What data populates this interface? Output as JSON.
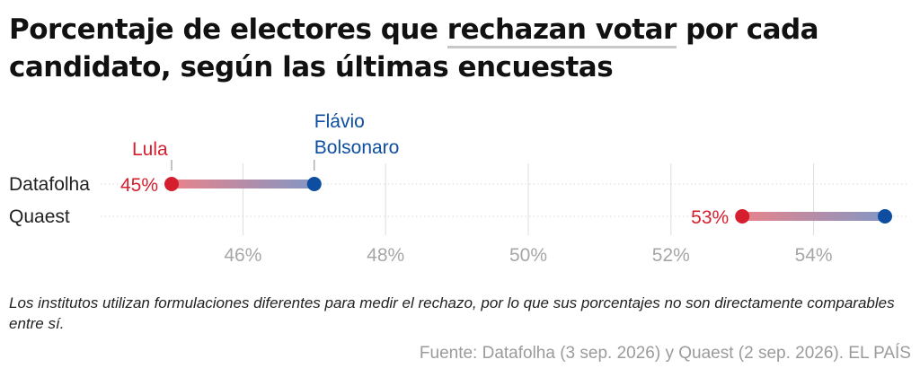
{
  "title": {
    "before": "Porcentaje de electores que ",
    "highlight": "rechazan votar",
    "after": " por cada candidato, según las últimas encuestas"
  },
  "colors": {
    "lula": "#d61f2e",
    "flavio": "#0d4ea0",
    "grid": "#dddddd",
    "tick": "#a6a6a6"
  },
  "chart_data": {
    "type": "dumbbell",
    "categories": [
      "Datafolha",
      "Quaest"
    ],
    "series": [
      {
        "name": "Lula",
        "values": [
          45,
          53
        ]
      },
      {
        "name": "Flávio Bolsonaro",
        "values": [
          47,
          55
        ]
      }
    ],
    "value_labels": [
      "45%",
      "53%"
    ],
    "xlim": [
      44,
      55.2
    ],
    "xticks": [
      {
        "value": 46,
        "label": "46%"
      },
      {
        "value": 48,
        "label": "48%"
      },
      {
        "value": 50,
        "label": "50%"
      },
      {
        "value": 52,
        "label": "52%"
      },
      {
        "value": 54,
        "label": "54%"
      }
    ],
    "series_labels": {
      "lula": [
        "Lula"
      ],
      "flavio": [
        "Flávio",
        "Bolsonaro"
      ]
    },
    "grid": true
  },
  "note": "Los institutos utilizan formulaciones diferentes para medir el rechazo, por lo que sus porcentajes no son directamente comparables entre sí.",
  "source": "Fuente: Datafolha (3 sep. 2026) y Quaest (2 sep. 2026). EL PAÍS"
}
